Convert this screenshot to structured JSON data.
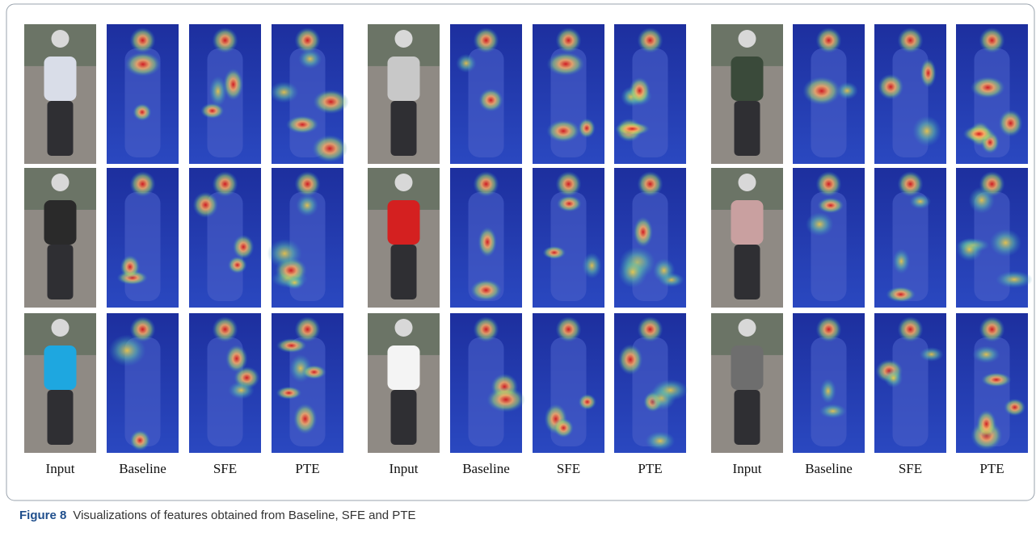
{
  "groups": [
    {
      "labels": [
        "Input",
        "Baseline",
        "SFE",
        "PTE"
      ]
    },
    {
      "labels": [
        "Input",
        "Baseline",
        "SFE",
        "PTE"
      ]
    },
    {
      "labels": [
        "Input",
        "Baseline",
        "SFE",
        "PTE"
      ]
    }
  ],
  "caption": {
    "label": "Figure 8",
    "text": "Visualizations of features obtained from Baseline, SFE and PTE"
  }
}
